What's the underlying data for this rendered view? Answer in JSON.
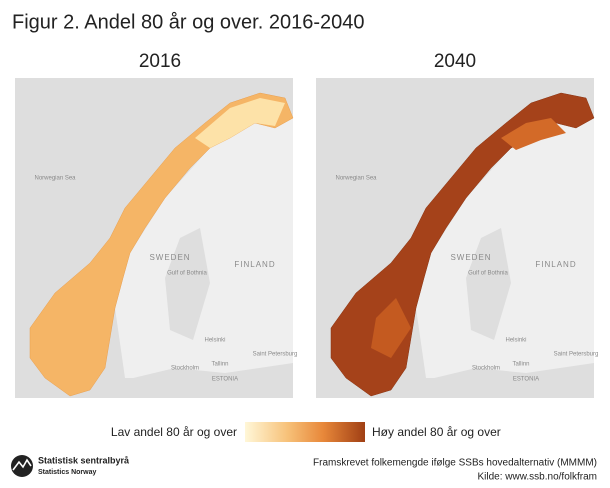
{
  "title": "Figur 2. Andel 80 år og over. 2016-2040",
  "maps": [
    {
      "year": "2016",
      "labels": [
        "Norwegian Sea",
        "SWEDEN",
        "FINLAND",
        "Gulf of Bothnia",
        "Helsinki",
        "Saint Petersburg",
        "Stockholm",
        "Tallinn",
        "ESTONIA"
      ]
    },
    {
      "year": "2040",
      "labels": [
        "Norwegian Sea",
        "SWEDEN",
        "FINLAND",
        "Gulf of Bothnia",
        "Helsinki",
        "Saint Petersburg",
        "Stockholm",
        "Tallinn",
        "ESTONIA"
      ]
    }
  ],
  "legend": {
    "low": "Lav andel 80 år og over",
    "high": "Høy andel 80 år og over"
  },
  "logo": {
    "name": "Statistisk sentralbyrå",
    "english": "Statistics Norway"
  },
  "source": [
    "Framskrevet folkemengde ifølge SSBs hovedalternativ (MMMM)",
    "Kilde: www.ssb.no/folkfram"
  ]
}
